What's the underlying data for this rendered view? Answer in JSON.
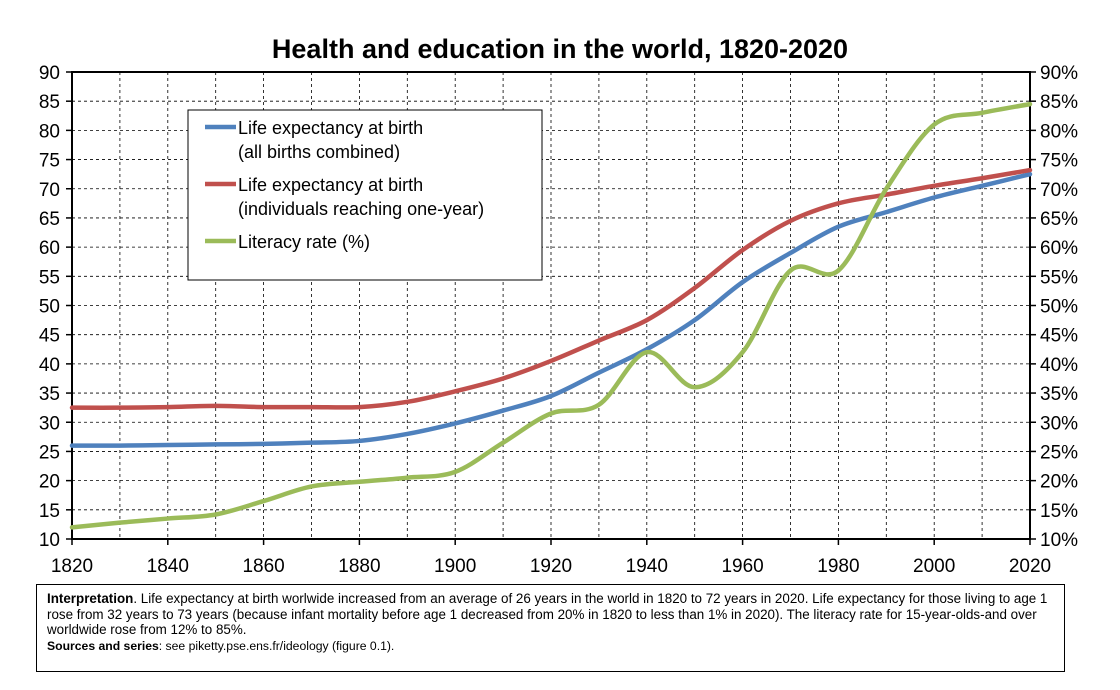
{
  "chart_data": {
    "type": "line",
    "title": "Health and education in the world, 1820-2020",
    "xlim": [
      1820,
      2020
    ],
    "x_ticks": [
      "1820",
      "1840",
      "1860",
      "1880",
      "1900",
      "1920",
      "1940",
      "1960",
      "1980",
      "2000",
      "2020"
    ],
    "ylim_left": [
      10,
      90
    ],
    "y_ticks_left": [
      "10",
      "15",
      "20",
      "25",
      "30",
      "35",
      "40",
      "45",
      "50",
      "55",
      "60",
      "65",
      "70",
      "75",
      "80",
      "85",
      "90"
    ],
    "ylim_right": [
      10,
      90
    ],
    "y_ticks_right": [
      "10%",
      "15%",
      "20%",
      "25%",
      "30%",
      "35%",
      "40%",
      "45%",
      "50%",
      "55%",
      "60%",
      "65%",
      "70%",
      "75%",
      "80%",
      "85%",
      "90%"
    ],
    "grid": true,
    "legend_placement": "top-left",
    "series": [
      {
        "name": "Life expectancy at birth",
        "name_line2": "(all births combined)",
        "color": "#4f81bd",
        "x": [
          1820,
          1830,
          1840,
          1850,
          1860,
          1870,
          1880,
          1890,
          1900,
          1910,
          1920,
          1930,
          1940,
          1950,
          1960,
          1970,
          1980,
          1990,
          2000,
          2010,
          2020
        ],
        "values": [
          26,
          26,
          26.1,
          26.2,
          26.3,
          26.5,
          26.8,
          28,
          29.8,
          32,
          34.5,
          38.5,
          42.5,
          47.5,
          54,
          59,
          63.5,
          66,
          68.5,
          70.5,
          72.5
        ]
      },
      {
        "name": "Life expectancy at birth",
        "name_line2": "(individuals reaching one-year)",
        "color": "#c0504d",
        "x": [
          1820,
          1830,
          1840,
          1850,
          1860,
          1870,
          1880,
          1890,
          1900,
          1910,
          1920,
          1930,
          1940,
          1950,
          1960,
          1970,
          1980,
          1990,
          2000,
          2010,
          2020
        ],
        "values": [
          32.5,
          32.5,
          32.6,
          32.8,
          32.6,
          32.6,
          32.6,
          33.5,
          35.3,
          37.5,
          40.5,
          44,
          47.5,
          53,
          59.5,
          64.5,
          67.5,
          69,
          70.5,
          71.8,
          73.2
        ]
      },
      {
        "name": "Literacy rate (%)",
        "color": "#9bbb59",
        "x": [
          1820,
          1830,
          1840,
          1850,
          1860,
          1870,
          1880,
          1890,
          1900,
          1910,
          1920,
          1930,
          1940,
          1950,
          1960,
          1970,
          1980,
          1990,
          2000,
          2010,
          2020
        ],
        "values": [
          12,
          12.8,
          13.5,
          14.2,
          16.5,
          19,
          19.8,
          20.5,
          21.5,
          26.5,
          31.5,
          33,
          42,
          36,
          42,
          56,
          56,
          70,
          81,
          83,
          84.5
        ]
      }
    ]
  },
  "note": {
    "interpretation_label": "Interpretation",
    "interpretation_text": ". Life expectancy at birth worlwide increased from an average of 26 years in the world in 1820 to 72 years in 2020. Life expectancy for those living to age 1 rose from 32 years to 73 years (because infant mortality before age 1 decreased from 20% in 1820 to less than 1% in 2020). The literacy rate for 15-year-olds-and over worldwide rose from 12% to 85%.",
    "sources_label": "Sources and series",
    "sources_text": ": see piketty.pse.ens.fr/ideology (figure 0.1)."
  }
}
